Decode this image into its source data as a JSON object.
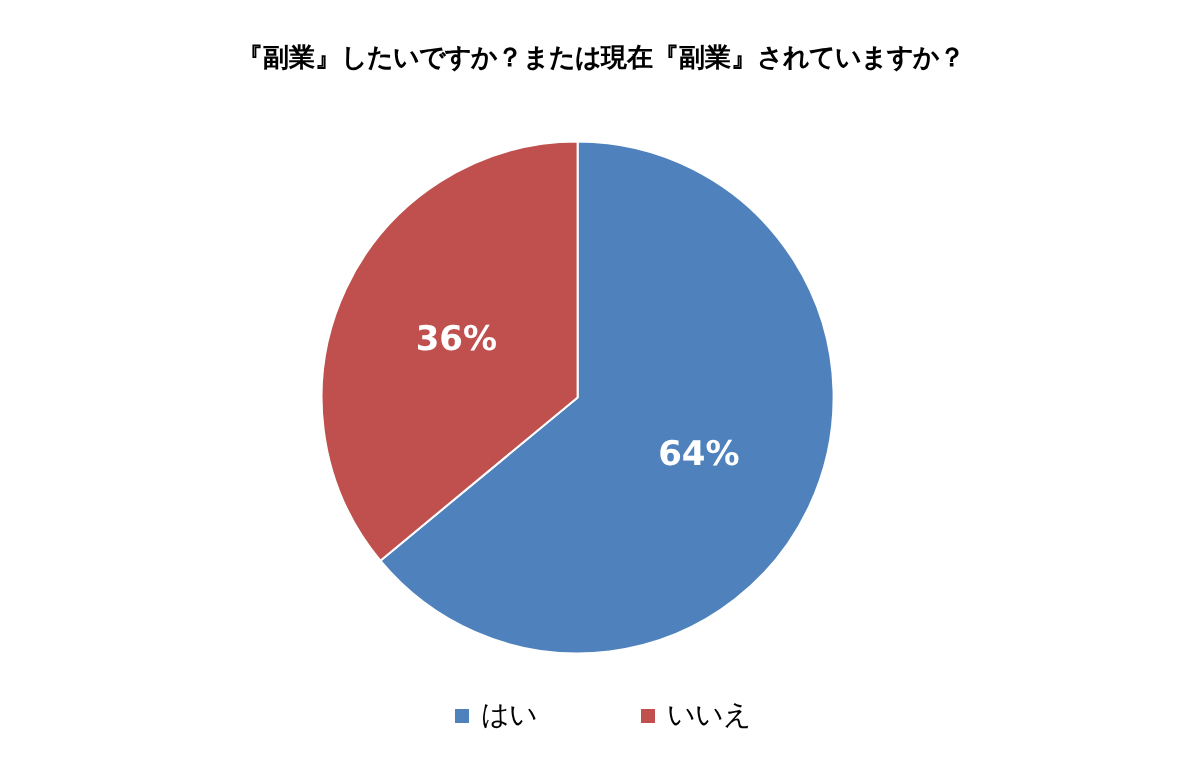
{
  "chart_data": {
    "type": "pie",
    "title": "『副業』したいですか？または現在『副業』されていますか？",
    "categories": [
      "はい",
      "いいえ"
    ],
    "values": [
      64,
      36
    ],
    "colors": [
      "#4f81bd",
      "#c0504d"
    ],
    "value_labels": [
      "64%",
      "36%"
    ],
    "legend": "bottom"
  }
}
